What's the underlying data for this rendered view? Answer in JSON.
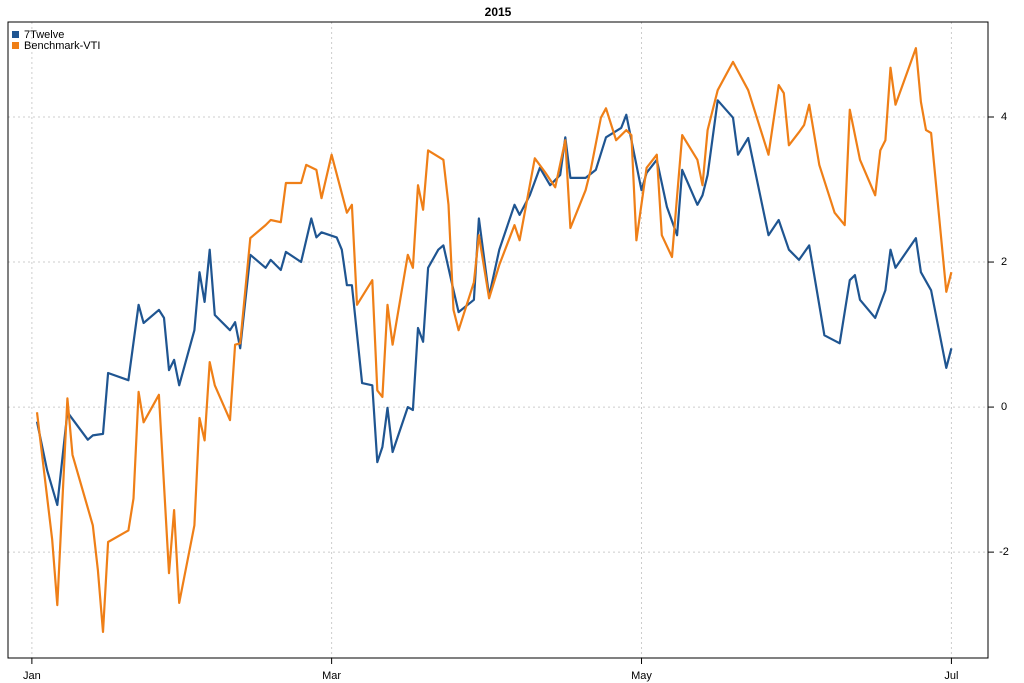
{
  "chart_data": {
    "type": "line",
    "title": "2015",
    "xlim": [
      -4.7,
      188.2
    ],
    "xticks": [
      {
        "value": 0,
        "label": "Jan"
      },
      {
        "value": 59,
        "label": "Mar"
      },
      {
        "value": 120,
        "label": "May"
      },
      {
        "value": 181,
        "label": "Jul"
      }
    ],
    "ylim": [
      -3.46,
      5.31
    ],
    "yticks": [
      -2,
      0,
      2,
      4
    ],
    "grid": true,
    "legend": "top-left",
    "series": [
      {
        "name": "7Twelve",
        "color": "#1f5591",
        "x": [
          1,
          3,
          5,
          7,
          11,
          12,
          14,
          15,
          19,
          21,
          22,
          25,
          26,
          27,
          28,
          29,
          32,
          33,
          34,
          35,
          36,
          39,
          40,
          41,
          43,
          46,
          47,
          49,
          50,
          53,
          55,
          56,
          57,
          60,
          61,
          62,
          63,
          65,
          67,
          68,
          69,
          70,
          71,
          74,
          75,
          76,
          77,
          78,
          80,
          81,
          83,
          84,
          87,
          88,
          90,
          92,
          95,
          96,
          98,
          100,
          102,
          104,
          105,
          106,
          109,
          111,
          113,
          116,
          117,
          120,
          121,
          123,
          125,
          127,
          128,
          131,
          132,
          133,
          135,
          138,
          139,
          141,
          145,
          147,
          149,
          151,
          153,
          156,
          159,
          161,
          162,
          163,
          166,
          168,
          169,
          170,
          174,
          175,
          177,
          180,
          181
        ],
        "values": [
          -0.2,
          -0.87,
          -1.35,
          -0.07,
          -0.45,
          -0.39,
          -0.37,
          0.47,
          0.37,
          1.41,
          1.16,
          1.34,
          1.23,
          0.51,
          0.65,
          0.3,
          1.06,
          1.86,
          1.45,
          2.17,
          1.27,
          1.06,
          1.17,
          0.81,
          2.1,
          1.92,
          2.03,
          1.89,
          2.14,
          2.0,
          2.6,
          2.34,
          2.41,
          2.34,
          2.17,
          1.68,
          1.68,
          0.33,
          0.3,
          -0.76,
          -0.55,
          -0.01,
          -0.62,
          0,
          -0.04,
          1.09,
          0.9,
          1.92,
          2.17,
          2.23,
          1.61,
          1.31,
          1.48,
          2.6,
          1.53,
          2.17,
          2.79,
          2.65,
          2.92,
          3.3,
          3.06,
          3.2,
          3.72,
          3.16,
          3.16,
          3.27,
          3.72,
          3.85,
          4.03,
          2.99,
          3.23,
          3.41,
          2.76,
          2.37,
          3.27,
          2.79,
          2.92,
          3.2,
          4.23,
          3.99,
          3.48,
          3.71,
          2.37,
          2.58,
          2.17,
          2.03,
          2.23,
          0.99,
          0.88,
          1.75,
          1.82,
          1.48,
          1.23,
          1.61,
          2.17,
          1.92,
          2.33,
          1.86,
          1.61,
          0.54,
          0.81
        ]
      },
      {
        "name": "Benchmark-VTI",
        "color": "#ef7f17",
        "x": [
          1,
          4,
          5,
          7,
          8,
          12,
          13,
          14,
          15,
          19,
          20,
          21,
          22,
          25,
          27,
          28,
          29,
          32,
          33,
          34,
          35,
          36,
          39,
          40,
          41,
          43,
          46,
          47,
          49,
          50,
          53,
          54,
          56,
          57,
          59,
          62,
          63,
          64,
          67,
          68,
          69,
          70,
          71,
          74,
          75,
          76,
          77,
          78,
          81,
          82,
          83,
          84,
          87,
          88,
          90,
          92,
          95,
          96,
          99,
          101,
          103,
          105,
          106,
          109,
          110,
          112,
          113,
          115,
          117,
          118,
          119,
          121,
          123,
          124,
          126,
          128,
          131,
          132,
          133,
          135,
          138,
          141,
          145,
          147,
          148,
          149,
          151,
          152,
          153,
          155,
          158,
          160,
          161,
          163,
          166,
          167,
          168,
          169,
          170,
          174,
          175,
          176,
          177,
          180,
          181
        ],
        "values": [
          -0.07,
          -1.83,
          -2.73,
          0.12,
          -0.66,
          -1.63,
          -2.25,
          -3.1,
          -1.86,
          -1.7,
          -1.26,
          0.21,
          -0.21,
          0.17,
          -2.29,
          -1.42,
          -2.7,
          -1.63,
          -0.15,
          -0.46,
          0.62,
          0.3,
          -0.18,
          0.86,
          0.88,
          2.33,
          2.51,
          2.58,
          2.55,
          3.09,
          3.09,
          3.34,
          3.27,
          2.88,
          3.48,
          2.68,
          2.79,
          1.41,
          1.75,
          0.23,
          0.14,
          1.41,
          0.86,
          2.1,
          1.92,
          3.06,
          2.72,
          3.54,
          3.41,
          2.79,
          1.34,
          1.06,
          1.72,
          2.37,
          1.5,
          1.96,
          2.51,
          2.3,
          3.43,
          3.24,
          3.03,
          3.68,
          2.47,
          2.99,
          3.27,
          3.99,
          4.12,
          3.68,
          3.82,
          3.75,
          2.3,
          3.3,
          3.48,
          2.37,
          2.07,
          3.75,
          3.41,
          3.06,
          3.82,
          4.37,
          4.76,
          4.37,
          3.48,
          4.44,
          4.33,
          3.61,
          3.79,
          3.89,
          4.17,
          3.34,
          2.68,
          2.51,
          4.1,
          3.41,
          2.92,
          3.54,
          3.68,
          4.68,
          4.17,
          4.95,
          4.21,
          3.82,
          3.78,
          1.59,
          1.86
        ]
      }
    ]
  }
}
